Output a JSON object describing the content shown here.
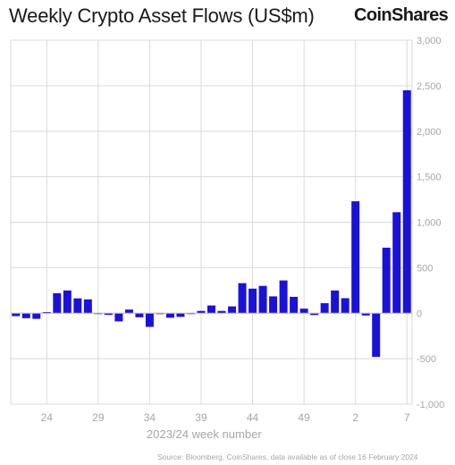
{
  "title": "Weekly Crypto Asset Flows (US$m)",
  "brand": "CoinShares",
  "source": "Source: Bloomberg, CoinShares, data available as of close 16 February 2024",
  "colors": {
    "bar": "#1b12d8",
    "grid": "#d9d9d9",
    "axis_text": "#a6a6a6"
  },
  "chart_data": {
    "type": "bar",
    "title": "Weekly Crypto Asset Flows (US$m)",
    "xlabel": "2023/24 week number",
    "ylabel": "",
    "ylim": [
      -1000,
      3000
    ],
    "yticks": [
      -1000,
      -500,
      0,
      500,
      1000,
      1500,
      2000,
      2500,
      3000
    ],
    "ytick_labels": [
      "-1,000",
      "-500",
      "0",
      "500",
      "1,000",
      "1,500",
      "2,000",
      "2,500",
      "3,000"
    ],
    "y_axis_position": "right",
    "grid": true,
    "legend": "none",
    "categories": [
      "21",
      "22",
      "23",
      "24",
      "25",
      "26",
      "27",
      "28",
      "29",
      "30",
      "31",
      "32",
      "33",
      "34",
      "35",
      "36",
      "37",
      "38",
      "39",
      "40",
      "41",
      "42",
      "43",
      "44",
      "45",
      "46",
      "47",
      "48",
      "49",
      "50",
      "51",
      "52",
      "1",
      "2",
      "3",
      "4",
      "5",
      "6",
      "7"
    ],
    "x_tick_labels": [
      "24",
      "29",
      "34",
      "39",
      "44",
      "49",
      "2",
      "7"
    ],
    "values": [
      -32,
      -55,
      -62,
      12,
      220,
      250,
      163,
      152,
      -6,
      -18,
      -90,
      40,
      -45,
      -150,
      -10,
      -50,
      -40,
      -8,
      25,
      85,
      25,
      75,
      330,
      270,
      300,
      185,
      360,
      180,
      50,
      -20,
      110,
      250,
      165,
      1230,
      -25,
      -480,
      720,
      1110,
      2450
    ]
  }
}
